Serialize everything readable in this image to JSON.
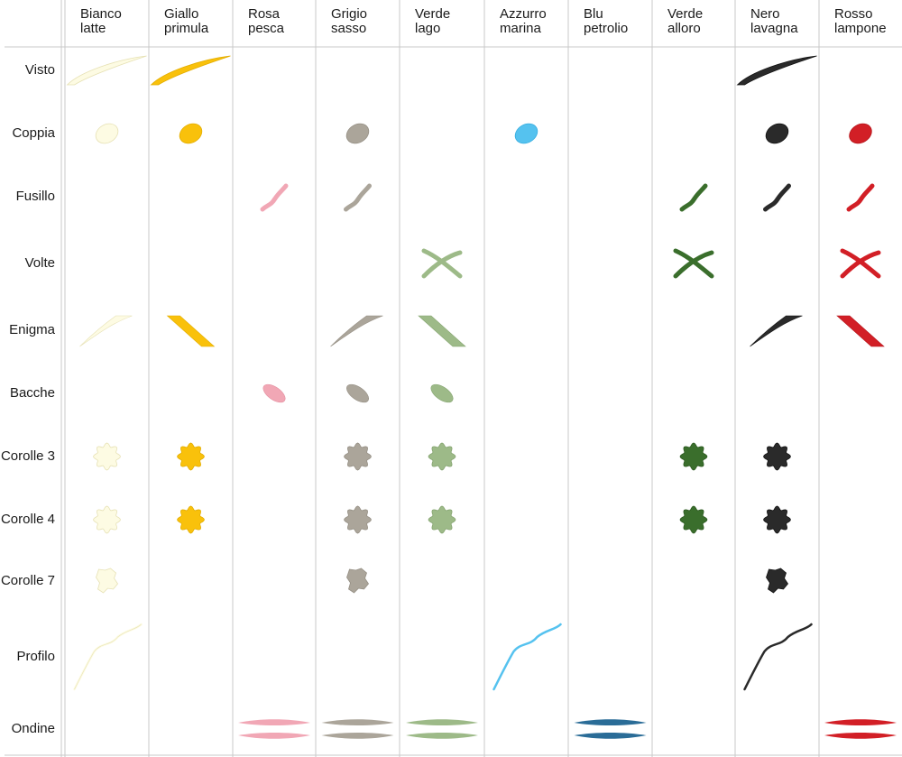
{
  "columns": [
    {
      "line1": "Bianco",
      "line2": "latte",
      "color": "#fdfbe3",
      "stroke": "#e6e1b4"
    },
    {
      "line1": "Giallo",
      "line2": "primula",
      "color": "#f9c10b",
      "stroke": "#e3ad00"
    },
    {
      "line1": "Rosa",
      "line2": "pesca",
      "color": "#f1a7b5",
      "stroke": "#e48e9f"
    },
    {
      "line1": "Grigio",
      "line2": "sasso",
      "color": "#aba59a",
      "stroke": "#958f84"
    },
    {
      "line1": "Verde",
      "line2": "lago",
      "color": "#9dba88",
      "stroke": "#86a571"
    },
    {
      "line1": "Azzurro",
      "line2": "marina",
      "color": "#55c2ef",
      "stroke": "#35ade0"
    },
    {
      "line1": "Blu",
      "line2": "petrolio",
      "color": "#2a6c97",
      "stroke": "#1d5a80"
    },
    {
      "line1": "Verde",
      "line2": "alloro",
      "color": "#3a6e2c",
      "stroke": "#2c5a20"
    },
    {
      "line1": "Nero",
      "line2": "lavagna",
      "color": "#2a2a2a",
      "stroke": "#111111"
    },
    {
      "line1": "Rosso",
      "line2": "lampone",
      "color": "#d21f26",
      "stroke": "#b5151b"
    }
  ],
  "rows": [
    {
      "label": "Visto",
      "shape": "visto-icon",
      "present": [
        0,
        1,
        8
      ]
    },
    {
      "label": "Coppia",
      "shape": "coppia-icon",
      "present": [
        0,
        1,
        3,
        5,
        8,
        9
      ]
    },
    {
      "label": "Fusillo",
      "shape": "fusillo-icon",
      "present": [
        2,
        3,
        7,
        8,
        9
      ]
    },
    {
      "label": "Volte",
      "shape": "volte-icon",
      "present": [
        4,
        7,
        9
      ]
    },
    {
      "label": "Enigma",
      "shape": "enigma-icon",
      "present": [
        0,
        1,
        3,
        4,
        8,
        9
      ]
    },
    {
      "label": "Bacche",
      "shape": "bacche-icon",
      "present": [
        2,
        3,
        4
      ]
    },
    {
      "label": "Corolle 3",
      "shape": "corolla-icon",
      "present": [
        0,
        1,
        3,
        4,
        7,
        8
      ]
    },
    {
      "label": "Corolle 4",
      "shape": "corolla-icon",
      "present": [
        0,
        1,
        3,
        4,
        7,
        8
      ]
    },
    {
      "label": "Corolle 7",
      "shape": "corolla-irregular-icon",
      "present": [
        0,
        3,
        8
      ]
    },
    {
      "label": "Profilo",
      "shape": "profilo-icon",
      "present": [
        0,
        5,
        8
      ]
    },
    {
      "label": "Ondine",
      "shape": "ondine-icon",
      "present": [
        2,
        3,
        4,
        6,
        9
      ]
    }
  ]
}
